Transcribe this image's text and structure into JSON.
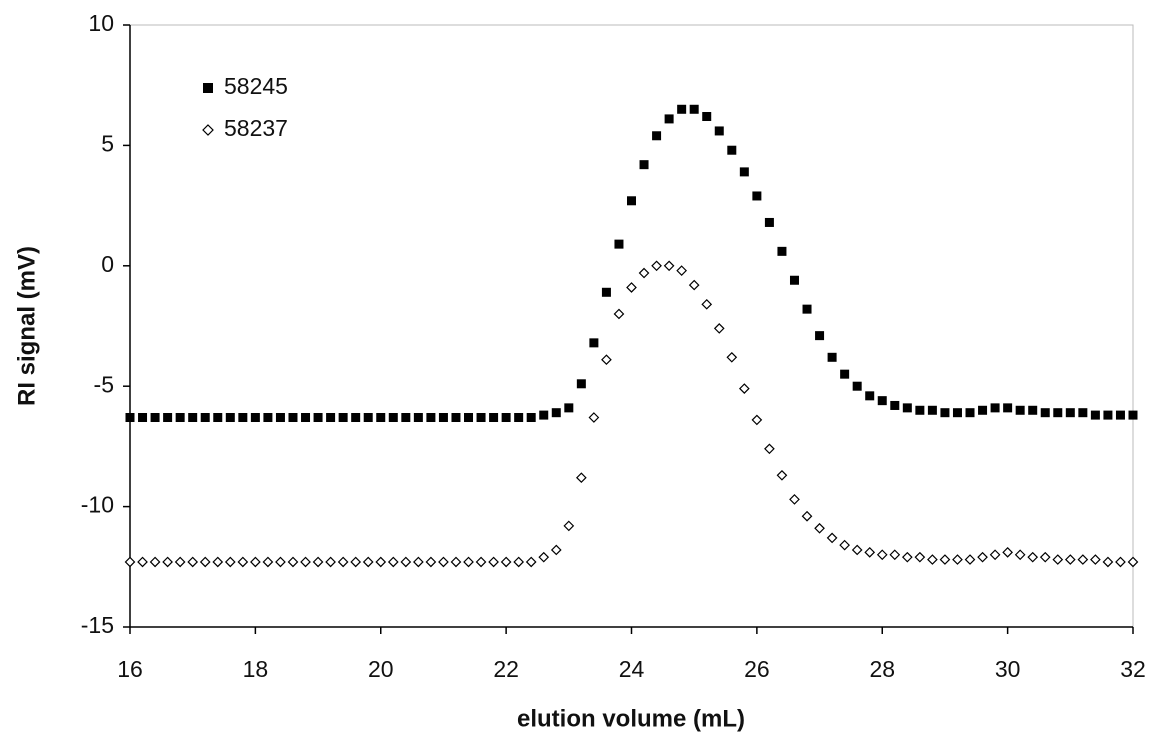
{
  "chart_data": {
    "type": "scatter",
    "x_label": "elution volume (mL)",
    "y_label": "RI signal (mV)",
    "xlim": [
      16,
      32
    ],
    "ylim": [
      -15,
      10
    ],
    "xticks": [
      16,
      18,
      20,
      22,
      24,
      26,
      28,
      30,
      32
    ],
    "yticks": [
      -15,
      -10,
      -5,
      0,
      5,
      10
    ],
    "legend": "upper left",
    "x": [
      16,
      16.2,
      16.4,
      16.6,
      16.8,
      17,
      17.2,
      17.4,
      17.6,
      17.8,
      18,
      18.2,
      18.4,
      18.6,
      18.8,
      19,
      19.2,
      19.4,
      19.6,
      19.8,
      20,
      20.2,
      20.4,
      20.6,
      20.8,
      21,
      21.2,
      21.4,
      21.6,
      21.8,
      22,
      22.2,
      22.4,
      22.6,
      22.8,
      23,
      23.2,
      23.4,
      23.6,
      23.8,
      24,
      24.2,
      24.4,
      24.6,
      24.8,
      25,
      25.2,
      25.4,
      25.6,
      25.8,
      26,
      26.2,
      26.4,
      26.6,
      26.8,
      27,
      27.2,
      27.4,
      27.6,
      27.8,
      28,
      28.2,
      28.4,
      28.6,
      28.8,
      29,
      29.2,
      29.4,
      29.6,
      29.8,
      30,
      30.2,
      30.4,
      30.6,
      30.8,
      31,
      31.2,
      31.4,
      31.6,
      31.8,
      32
    ],
    "series": [
      {
        "name": "58245",
        "color": "#000000",
        "marker": "square",
        "values": [
          -6.3,
          -6.3,
          -6.3,
          -6.3,
          -6.3,
          -6.3,
          -6.3,
          -6.3,
          -6.3,
          -6.3,
          -6.3,
          -6.3,
          -6.3,
          -6.3,
          -6.3,
          -6.3,
          -6.3,
          -6.3,
          -6.3,
          -6.3,
          -6.3,
          -6.3,
          -6.3,
          -6.3,
          -6.3,
          -6.3,
          -6.3,
          -6.3,
          -6.3,
          -6.3,
          -6.3,
          -6.3,
          -6.3,
          -6.2,
          -6.1,
          -5.9,
          -4.9,
          -3.2,
          -1.1,
          0.9,
          2.7,
          4.2,
          5.4,
          6.1,
          6.5,
          6.5,
          6.2,
          5.6,
          4.8,
          3.9,
          2.9,
          1.8,
          0.6,
          -0.6,
          -1.8,
          -2.9,
          -3.8,
          -4.5,
          -5.0,
          -5.4,
          -5.6,
          -5.8,
          -5.9,
          -6.0,
          -6.0,
          -6.1,
          -6.1,
          -6.1,
          -6.0,
          -5.9,
          -5.9,
          -6.0,
          -6.0,
          -6.1,
          -6.1,
          -6.1,
          -6.1,
          -6.2,
          -6.2,
          -6.2,
          -6.2
        ]
      },
      {
        "name": "58237",
        "color": "#000000",
        "marker": "diamond",
        "values": [
          -12.3,
          -12.3,
          -12.3,
          -12.3,
          -12.3,
          -12.3,
          -12.3,
          -12.3,
          -12.3,
          -12.3,
          -12.3,
          -12.3,
          -12.3,
          -12.3,
          -12.3,
          -12.3,
          -12.3,
          -12.3,
          -12.3,
          -12.3,
          -12.3,
          -12.3,
          -12.3,
          -12.3,
          -12.3,
          -12.3,
          -12.3,
          -12.3,
          -12.3,
          -12.3,
          -12.3,
          -12.3,
          -12.3,
          -12.1,
          -11.8,
          -10.8,
          -8.8,
          -6.3,
          -3.9,
          -2.0,
          -0.9,
          -0.3,
          0.0,
          0.0,
          -0.2,
          -0.8,
          -1.6,
          -2.6,
          -3.8,
          -5.1,
          -6.4,
          -7.6,
          -8.7,
          -9.7,
          -10.4,
          -10.9,
          -11.3,
          -11.6,
          -11.8,
          -11.9,
          -12.0,
          -12.0,
          -12.1,
          -12.1,
          -12.2,
          -12.2,
          -12.2,
          -12.2,
          -12.1,
          -12.0,
          -11.9,
          -12.0,
          -12.1,
          -12.1,
          -12.2,
          -12.2,
          -12.2,
          -12.2,
          -12.3,
          -12.3,
          -12.3
        ]
      }
    ]
  }
}
